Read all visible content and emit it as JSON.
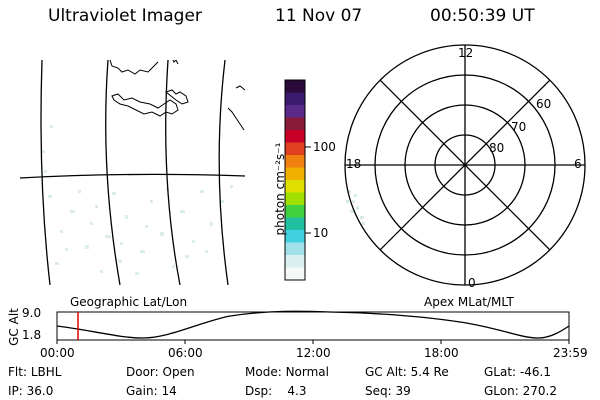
{
  "header": {
    "instrument": "Ultraviolet Imager",
    "date": "11 Nov 07",
    "time": "00:50:39 UT"
  },
  "colorbar": {
    "unit_label": "photon cm⁻²s⁻¹",
    "ticks": [
      "100",
      "10"
    ],
    "colors": [
      "#2a0a3a",
      "#3a1a6a",
      "#5a2a8a",
      "#8a1a3a",
      "#c80028",
      "#e04020",
      "#f08010",
      "#f0b000",
      "#e0e000",
      "#a0e000",
      "#40d040",
      "#20c0a0",
      "#40d0e0",
      "#a0e0e8",
      "#d8f0f0",
      "#f4f8f8"
    ]
  },
  "map_left": {
    "label": "Geographic Lat/Lon"
  },
  "polar": {
    "label": "Apex MLat/MLT",
    "hour_labels": {
      "top": "12",
      "bottom": "0",
      "left": "18",
      "right": "6"
    },
    "lat_labels": [
      "60",
      "70",
      "80"
    ]
  },
  "altitude_plot": {
    "ylabel": "GC Alt",
    "yticks": [
      "9.0",
      "1.8"
    ],
    "xticks": [
      "00:00",
      "06:00",
      "12:00",
      "18:00",
      "23:59"
    ],
    "marker_time": "00:50",
    "marker_color": "#e00000"
  },
  "status": {
    "flt": {
      "label": "Flt:",
      "value": "LBHL"
    },
    "ip": {
      "label": "IP:",
      "value": "36.0"
    },
    "door": {
      "label": "Door:",
      "value": "Open"
    },
    "gain": {
      "label": "Gain:",
      "value": "14"
    },
    "mode": {
      "label": "Mode:",
      "value": "Normal"
    },
    "dsp": {
      "label": "Dsp:",
      "value": "4.3"
    },
    "gcalt": {
      "label": "GC Alt:",
      "value": "5.4 Re"
    },
    "seq": {
      "label": "Seq:",
      "value": "39"
    },
    "glat": {
      "label": "GLat:",
      "value": "-46.1"
    },
    "glon": {
      "label": "GLon:",
      "value": "270.2"
    }
  }
}
